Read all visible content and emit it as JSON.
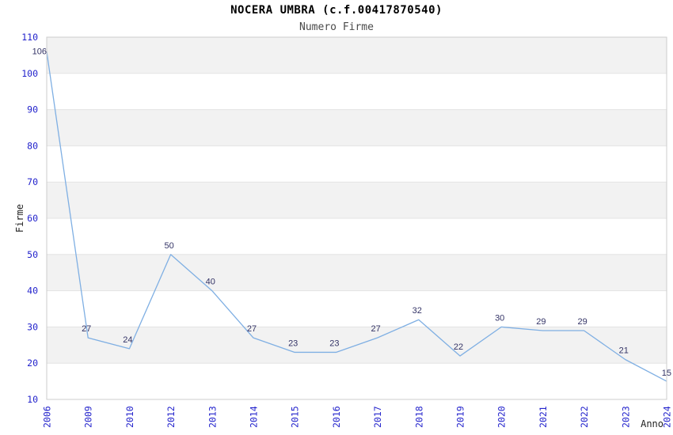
{
  "chart_data": {
    "type": "line",
    "title": "NOCERA UMBRA (c.f.00417870540)",
    "subtitle": "Numero Firme",
    "xlabel": "Anno",
    "ylabel": "Firme",
    "categories": [
      "2006",
      "2009",
      "2010",
      "2012",
      "2013",
      "2014",
      "2015",
      "2016",
      "2017",
      "2018",
      "2019",
      "2020",
      "2021",
      "2022",
      "2023",
      "2024"
    ],
    "values": [
      106,
      27,
      24,
      50,
      40,
      27,
      23,
      23,
      27,
      32,
      22,
      30,
      29,
      29,
      21,
      15
    ],
    "ylim": [
      10,
      110
    ],
    "ytick_step": 10,
    "yticks": [
      10,
      20,
      30,
      40,
      50,
      60,
      70,
      80,
      90,
      100,
      110
    ],
    "grid": "horizontal-bands",
    "legend_position": "none",
    "colors": {
      "line": "#7fafe3",
      "tick_label": "#2323cc",
      "data_label": "#333366",
      "band": "#f2f2f2",
      "gridline": "#e3e3e3",
      "plot_border": "#cccccc",
      "title": "#000000",
      "subtitle": "#4a4a4a",
      "axis_title": "#222222",
      "background": "#ffffff"
    }
  }
}
